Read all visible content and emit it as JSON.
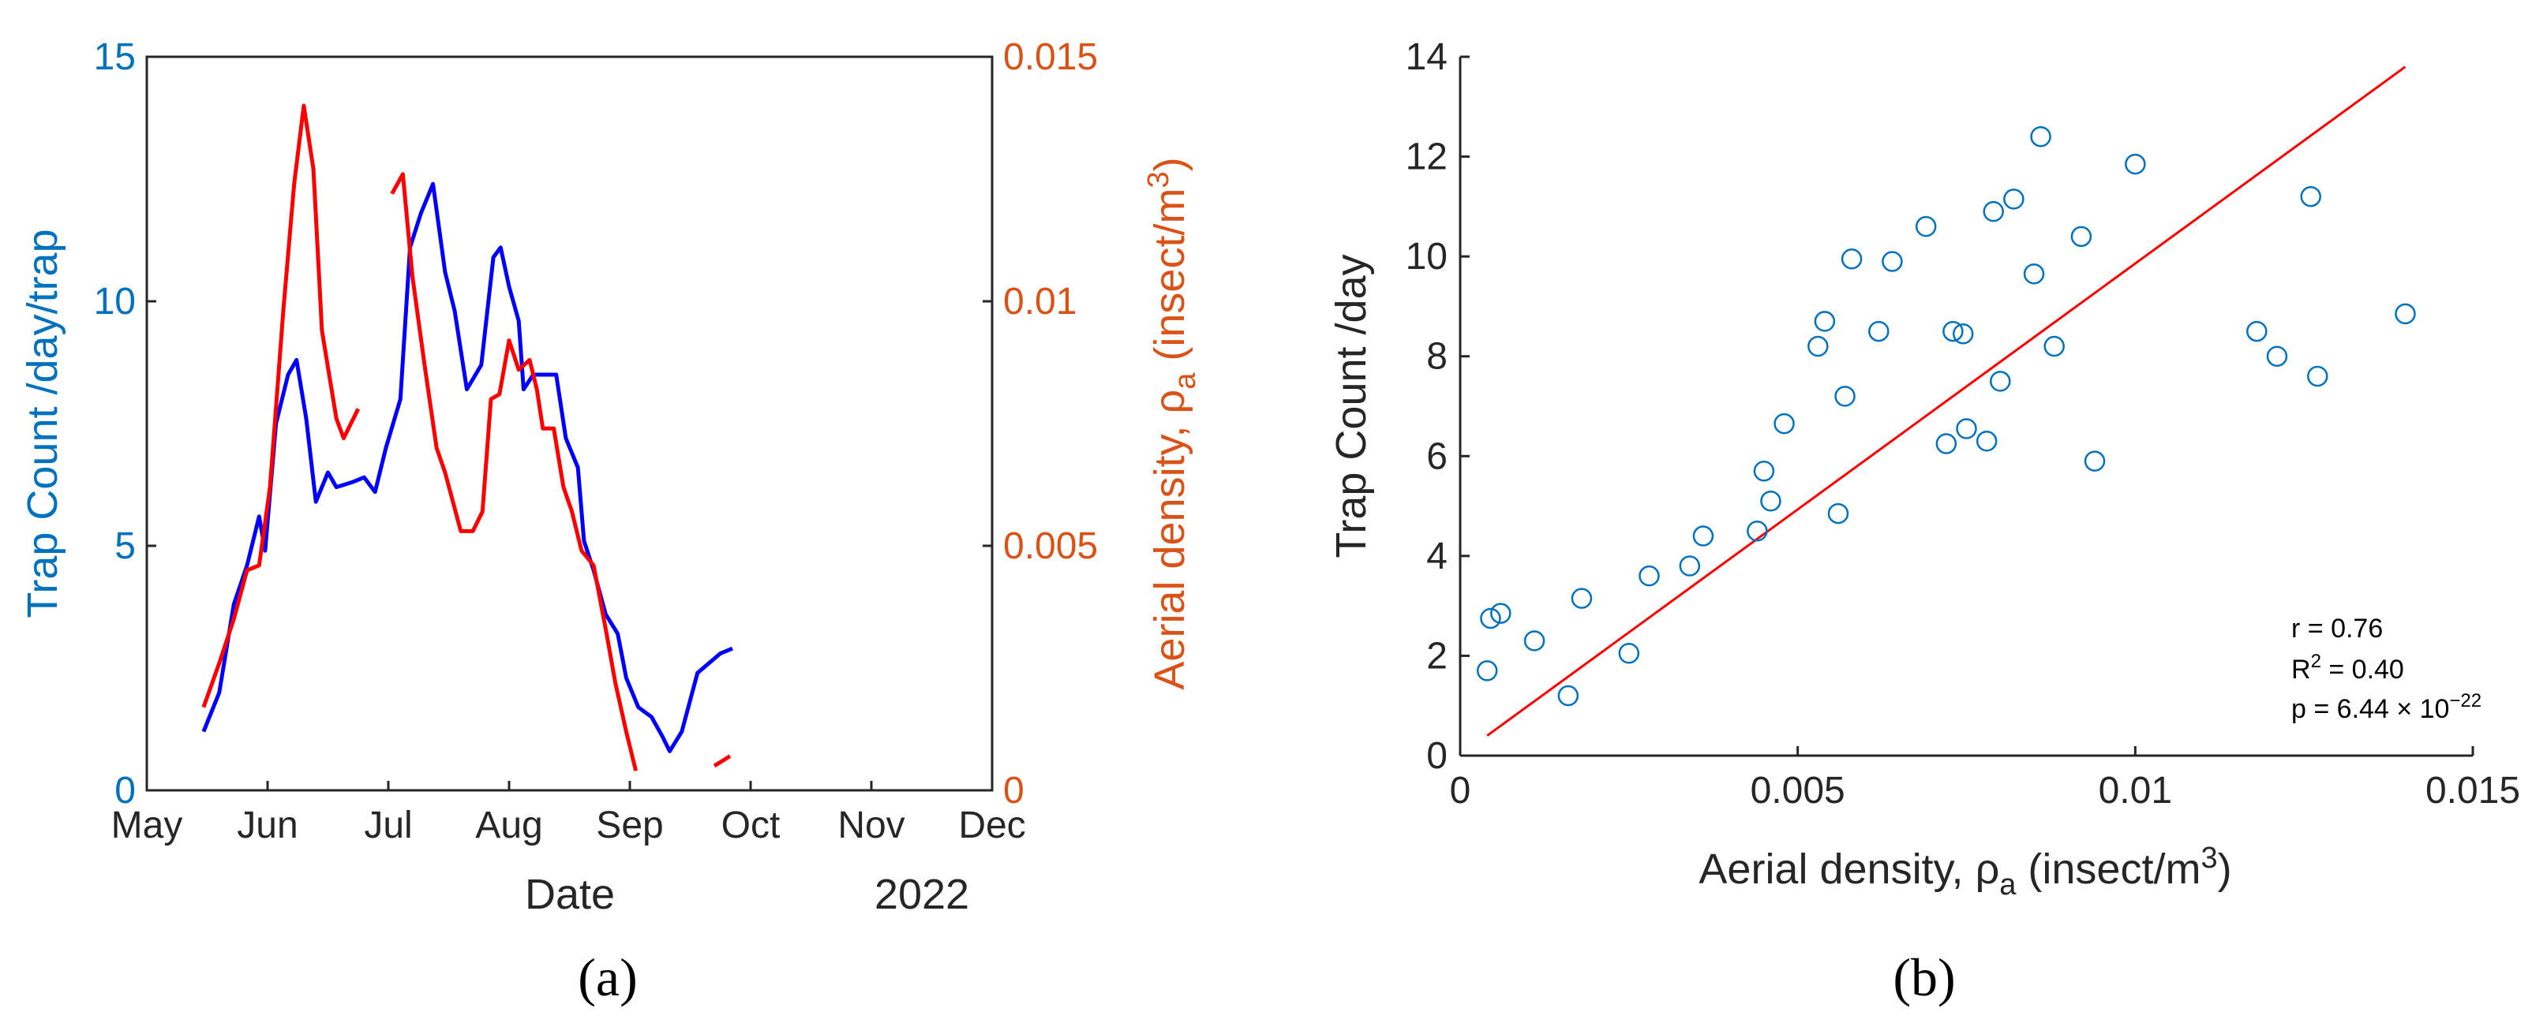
{
  "chart_data": [
    {
      "panel": "(a)",
      "type": "line",
      "xlabel": "Date",
      "year_label": "2022",
      "x_tick_labels": [
        "May",
        "Jun",
        "Jul",
        "Aug",
        "Sep",
        "Oct",
        "Nov",
        "Dec"
      ],
      "xlim": [
        0,
        7
      ],
      "left_axis": {
        "label": "Trap Count /day/trap",
        "ylim": [
          0,
          15
        ],
        "ticks": [
          0,
          5,
          10,
          15
        ],
        "tick_labels": [
          "0",
          "5",
          "10",
          "15"
        ],
        "color": "#0072BD"
      },
      "right_axis": {
        "label_main": "Aerial density,  ρ",
        "label_sub": "a",
        "label_units": " (insect/m",
        "label_sup": "3",
        "label_close": ")",
        "ylim": [
          0,
          0.015
        ],
        "ticks": [
          0,
          0.005,
          0.01,
          0.015
        ],
        "tick_labels": [
          "0",
          "0.005",
          "0.01",
          "0.015"
        ],
        "color": "#D95319"
      },
      "series": [
        {
          "name": "Trap Count",
          "axis": "left",
          "color": "#0000FF",
          "segments": [
            [
              [
                0.47,
                1.2
              ],
              [
                0.6,
                2.0
              ],
              [
                0.72,
                3.8
              ],
              [
                0.83,
                4.6
              ],
              [
                0.93,
                5.6
              ],
              [
                0.98,
                4.9
              ],
              [
                1.07,
                7.5
              ],
              [
                1.17,
                8.5
              ],
              [
                1.24,
                8.8
              ],
              [
                1.32,
                7.6
              ],
              [
                1.4,
                5.9
              ],
              [
                1.5,
                6.5
              ],
              [
                1.57,
                6.2
              ],
              [
                1.7,
                6.3
              ],
              [
                1.8,
                6.4
              ],
              [
                1.89,
                6.1
              ],
              [
                1.98,
                7.0
              ],
              [
                2.1,
                8.0
              ],
              [
                2.18,
                11.1
              ],
              [
                2.27,
                11.8
              ],
              [
                2.37,
                12.4
              ],
              [
                2.47,
                10.6
              ],
              [
                2.55,
                9.8
              ],
              [
                2.65,
                8.2
              ],
              [
                2.77,
                8.7
              ],
              [
                2.87,
                10.9
              ],
              [
                2.93,
                11.1
              ],
              [
                3.0,
                10.3
              ],
              [
                3.08,
                9.6
              ],
              [
                3.12,
                8.2
              ],
              [
                3.2,
                8.5
              ],
              [
                3.27,
                8.5
              ],
              [
                3.39,
                8.5
              ],
              [
                3.47,
                7.2
              ],
              [
                3.57,
                6.6
              ],
              [
                3.62,
                5.1
              ],
              [
                3.7,
                4.5
              ],
              [
                3.8,
                3.6
              ],
              [
                3.9,
                3.2
              ],
              [
                3.97,
                2.3
              ],
              [
                4.07,
                1.7
              ],
              [
                4.18,
                1.5
              ],
              [
                4.27,
                1.1
              ],
              [
                4.33,
                0.8
              ],
              [
                4.43,
                1.2
              ],
              [
                4.56,
                2.4
              ],
              [
                4.75,
                2.8
              ],
              [
                4.85,
                2.9
              ]
            ]
          ]
        },
        {
          "name": "Aerial density",
          "axis": "right",
          "color": "#FF0000",
          "segments": [
            [
              [
                0.47,
                0.0017
              ],
              [
                0.6,
                0.0026
              ],
              [
                0.72,
                0.0035
              ],
              [
                0.83,
                0.0045
              ],
              [
                0.93,
                0.0046
              ],
              [
                1.02,
                0.0062
              ],
              [
                1.13,
                0.0098
              ],
              [
                1.22,
                0.0124
              ],
              [
                1.3,
                0.014
              ],
              [
                1.38,
                0.0127
              ],
              [
                1.45,
                0.0094
              ],
              [
                1.57,
                0.0076
              ],
              [
                1.63,
                0.0072
              ],
              [
                1.75,
                0.0078
              ]
            ],
            [
              [
                2.03,
                0.0122
              ],
              [
                2.12,
                0.0126
              ],
              [
                2.2,
                0.0105
              ],
              [
                2.3,
                0.0087
              ],
              [
                2.4,
                0.007
              ],
              [
                2.47,
                0.0065
              ],
              [
                2.6,
                0.0053
              ],
              [
                2.7,
                0.0053
              ],
              [
                2.78,
                0.0057
              ],
              [
                2.85,
                0.008
              ],
              [
                2.92,
                0.0081
              ],
              [
                3.0,
                0.0092
              ],
              [
                3.08,
                0.0086
              ],
              [
                3.17,
                0.0088
              ],
              [
                3.23,
                0.0082
              ],
              [
                3.28,
                0.0074
              ],
              [
                3.37,
                0.0074
              ],
              [
                3.45,
                0.0062
              ],
              [
                3.52,
                0.0057
              ],
              [
                3.6,
                0.0049
              ],
              [
                3.7,
                0.0046
              ],
              [
                3.8,
                0.0033
              ],
              [
                3.88,
                0.0022
              ],
              [
                3.97,
                0.0012
              ],
              [
                4.05,
                0.0004
              ]
            ],
            [
              [
                4.7,
                0.0005
              ],
              [
                4.83,
                0.0007
              ]
            ]
          ]
        }
      ]
    },
    {
      "panel": "(b)",
      "type": "scatter",
      "xlabel_main": "Aerial density,  ρ",
      "xlabel_sub": "a",
      "xlabel_units": " (insect/m",
      "xlabel_sup": "3",
      "xlabel_close": ")",
      "ylabel": "Trap Count /day",
      "xlim": [
        0,
        0.015
      ],
      "ylim": [
        0,
        14
      ],
      "x_ticks": [
        0,
        0.005,
        0.01,
        0.015
      ],
      "x_tick_labels": [
        "0",
        "0.005",
        "0.01",
        "0.015"
      ],
      "y_ticks": [
        0,
        2,
        4,
        6,
        8,
        10,
        12,
        14
      ],
      "y_tick_labels": [
        "0",
        "2",
        "4",
        "6",
        "8",
        "10",
        "12",
        "14"
      ],
      "marker_color": "#0072BD",
      "line_color": "#FF0000",
      "points": [
        [
          0.0004,
          1.7
        ],
        [
          0.00045,
          2.75
        ],
        [
          0.0006,
          2.85
        ],
        [
          0.0011,
          2.3
        ],
        [
          0.0016,
          1.2
        ],
        [
          0.0018,
          3.15
        ],
        [
          0.0025,
          2.05
        ],
        [
          0.0028,
          3.6
        ],
        [
          0.0034,
          3.8
        ],
        [
          0.0036,
          4.4
        ],
        [
          0.0044,
          4.5
        ],
        [
          0.0045,
          5.7
        ],
        [
          0.0046,
          5.1
        ],
        [
          0.0048,
          6.65
        ],
        [
          0.0053,
          8.2
        ],
        [
          0.0054,
          8.7
        ],
        [
          0.0056,
          4.85
        ],
        [
          0.0057,
          7.2
        ],
        [
          0.0058,
          9.95
        ],
        [
          0.0062,
          8.5
        ],
        [
          0.0064,
          9.9
        ],
        [
          0.0069,
          10.6
        ],
        [
          0.0072,
          6.25
        ],
        [
          0.0073,
          8.5
        ],
        [
          0.00745,
          8.45
        ],
        [
          0.0075,
          6.55
        ],
        [
          0.0078,
          6.3
        ],
        [
          0.0079,
          10.9
        ],
        [
          0.008,
          7.5
        ],
        [
          0.0082,
          11.15
        ],
        [
          0.0085,
          9.65
        ],
        [
          0.0086,
          12.4
        ],
        [
          0.0088,
          8.2
        ],
        [
          0.0092,
          10.4
        ],
        [
          0.0094,
          5.9
        ],
        [
          0.01,
          11.85
        ],
        [
          0.0118,
          8.5
        ],
        [
          0.0121,
          8.0
        ],
        [
          0.0126,
          11.2
        ],
        [
          0.0127,
          7.6
        ],
        [
          0.014,
          8.85
        ]
      ],
      "fit_line": [
        [
          0.0004,
          0.4
        ],
        [
          0.014,
          13.8
        ]
      ],
      "stats": {
        "r": "r = 0.76",
        "r2_base": "R",
        "r2_sup": "2",
        "r2_rest": " = 0.40",
        "p_base": "p = 6.44 × 10",
        "p_sup": "−22"
      }
    }
  ]
}
